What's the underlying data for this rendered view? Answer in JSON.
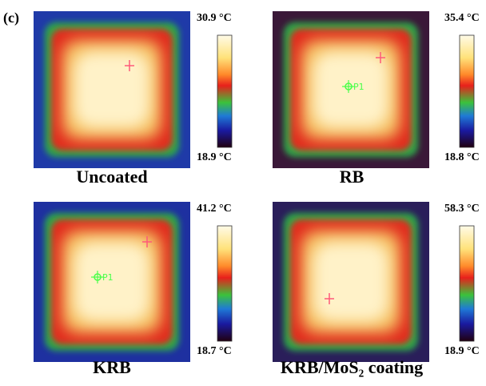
{
  "panel_label": "(c)",
  "panels": [
    {
      "max": "30.9 °C",
      "min": "18.9 °C",
      "caption": "Uncoated"
    },
    {
      "max": "35.4 °C",
      "min": "18.8 °C",
      "caption": "RB",
      "marker_label": "P1"
    },
    {
      "max": "41.2 °C",
      "min": "18.7 °C",
      "caption": "KRB",
      "marker_label": "P1"
    },
    {
      "max": "58.3 °C",
      "min": "18.9 °C",
      "caption": "KRB/MoS₂ coating"
    }
  ]
}
